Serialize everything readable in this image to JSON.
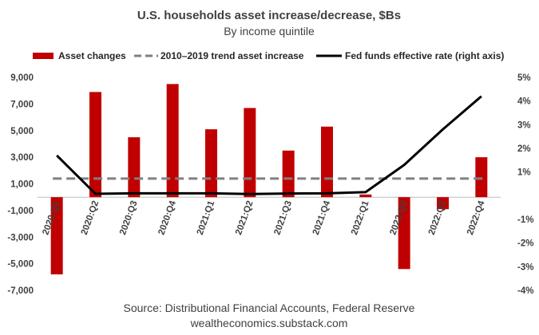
{
  "chart_data": {
    "type": "bar",
    "title": "U.S. households asset increase/decrease, $Bs",
    "subtitle": "By income quintile",
    "categories": [
      "2020:Q1",
      "2020:Q2",
      "2020:Q3",
      "2020:Q4",
      "2021:Q1",
      "2021:Q2",
      "2021:Q3",
      "2021:Q4",
      "2022:Q1",
      "2022:Q2",
      "2022:Q3",
      "2022:Q4"
    ],
    "series": [
      {
        "name": "Asset changes",
        "kind": "bar",
        "axis": "left",
        "color": "#c00000",
        "values": [
          -5800,
          7900,
          4500,
          8500,
          5100,
          6700,
          3500,
          5300,
          200,
          -5400,
          -900,
          3000
        ]
      },
      {
        "name": "2010–2019 trend asset increase",
        "kind": "dashed-line",
        "axis": "left",
        "color": "#808080",
        "values": [
          1400,
          1400,
          1400,
          1400,
          1400,
          1400,
          1400,
          1400,
          1400,
          1400,
          1400,
          1400
        ]
      },
      {
        "name": "Fed funds effective rate (right axis)",
        "kind": "line",
        "axis": "right",
        "color": "#000000",
        "values": [
          1.7,
          0.08,
          0.1,
          0.1,
          0.1,
          0.07,
          0.09,
          0.1,
          0.15,
          1.3,
          2.8,
          4.2
        ]
      }
    ],
    "y_left": {
      "min": -7000,
      "max": 9000,
      "ticks": [
        "9,000",
        "7,000",
        "5,000",
        "3,000",
        "1,000",
        "-1,000",
        "-3,000",
        "-5,000",
        "-7,000"
      ]
    },
    "y_right": {
      "min": -4,
      "max": 5,
      "ticks": [
        "5%",
        "4%",
        "3%",
        "2%",
        "1%",
        "-1%",
        "-2%",
        "-3%",
        "-4%"
      ]
    },
    "legend_position": "top",
    "grid": false
  },
  "footer": {
    "source": "Source: Distributional Financial Accounts, Federal Reserve",
    "site": "wealtheconomics.substack.com"
  }
}
